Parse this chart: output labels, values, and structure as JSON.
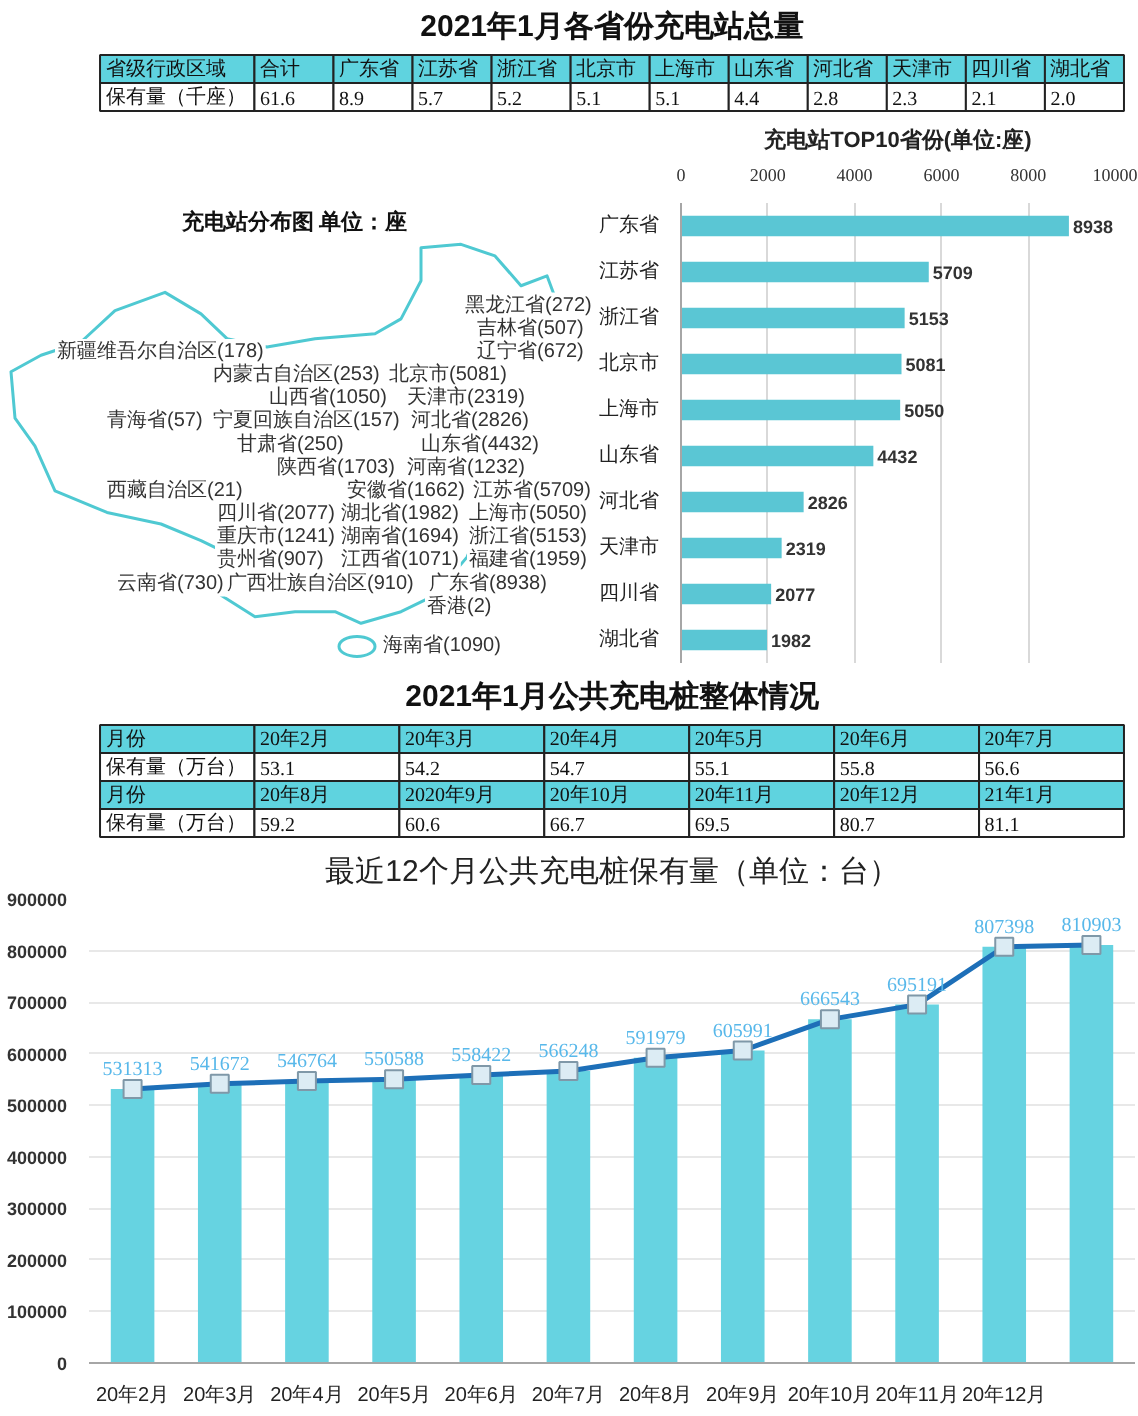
{
  "chart_data": [
    {
      "type": "other",
      "title": "2021年1月各省份充电站总量",
      "xlabel": "省级行政区域",
      "ylabel": "保有量（千座）",
      "categories": [
        "合计",
        "广东省",
        "江苏省",
        "浙江省",
        "北京市",
        "上海市",
        "山东省",
        "河北省",
        "天津市",
        "四川省",
        "湖北省"
      ],
      "values": [
        61.6,
        8.9,
        5.7,
        5.2,
        5.1,
        5.1,
        4.4,
        2.8,
        2.3,
        2.1,
        2.0
      ],
      "value_labels": [
        "61.6",
        "8.9",
        "5.7",
        "5.2",
        "5.1",
        "5.1",
        "4.4",
        "2.8",
        "2.3",
        "2.1",
        "2.0"
      ]
    },
    {
      "type": "other",
      "title": "充电站分布图  单位：座",
      "annotations": [
        "黑龙江省(272)",
        "吉林省(507)",
        "新疆维吾尔自治区(178)",
        "辽宁省(672)",
        "内蒙古自治区(253)",
        "北京市(5081)",
        "山西省(1050)",
        "天津市(2319)",
        "青海省(57)",
        "宁夏回族自治区(157)",
        "河北省(2826)",
        "甘肃省(250)",
        "山东省(4432)",
        "陕西省(1703)",
        "河南省(1232)",
        "西藏自治区(21)",
        "安徽省(1662)",
        "江苏省(5709)",
        "四川省(2077)",
        "湖北省(1982)",
        "上海市(5050)",
        "重庆市(1241)",
        "湖南省(1694)",
        "浙江省(5153)",
        "贵州省(907)",
        "江西省(1071)",
        "福建省(1959)",
        "云南省(730)",
        "广西壮族自治区(910)",
        "广东省(8938)",
        "香港(2)",
        "海南省(1090)"
      ]
    },
    {
      "type": "bar",
      "orientation": "horizontal",
      "title": "充电站TOP10省份(单位:座)",
      "categories": [
        "广东省",
        "江苏省",
        "浙江省",
        "北京市",
        "上海市",
        "山东省",
        "河北省",
        "天津市",
        "四川省",
        "湖北省"
      ],
      "values": [
        8938,
        5709,
        5153,
        5081,
        5050,
        4432,
        2826,
        2319,
        2077,
        1982
      ],
      "color": "#5ac6d4",
      "xlim": [
        0,
        10000
      ],
      "xticks": [
        0,
        2000,
        4000,
        6000,
        8000,
        10000
      ],
      "grid": "x",
      "data_labels": true
    },
    {
      "type": "other",
      "title": "2021年1月公共充电桩整体情况",
      "xlabel": "月份",
      "ylabel": "保有量（万台）",
      "categories": [
        "20年2月",
        "20年3月",
        "20年4月",
        "20年5月",
        "20年6月",
        "20年7月",
        "20年8月",
        "2020年9月",
        "20年10月",
        "20年11月",
        "20年12月",
        "21年1月"
      ],
      "values": [
        53.1,
        54.2,
        54.7,
        55.1,
        55.8,
        56.6,
        59.2,
        60.6,
        66.7,
        69.5,
        80.7,
        81.1
      ],
      "data_labels": true
    },
    {
      "type": "bar",
      "title": "最近12个月公共充电桩保有量（单位：台）",
      "categories": [
        "20年2月",
        "20年3月",
        "20年4月",
        "20年5月",
        "20年6月",
        "20年7月",
        "20年8月",
        "20年9月",
        "20年10月",
        "20年11月",
        "20年12月",
        null
      ],
      "series": [
        {
          "type": "bar",
          "color": "#66d3e1",
          "values": [
            531313,
            541672,
            546764,
            550588,
            558422,
            566248,
            591979,
            605991,
            666543,
            695191,
            807398,
            810903
          ]
        },
        {
          "type": "line",
          "color": "#1d6fb8",
          "values": [
            531313,
            541672,
            546764,
            550588,
            558422,
            566248,
            591979,
            605991,
            666543,
            695191,
            807398,
            810903
          ],
          "marker": "square",
          "data_labels": true
        }
      ],
      "ylim": [
        0,
        900000
      ],
      "yticks": [
        0,
        100000,
        200000,
        300000,
        400000,
        500000,
        600000,
        700000,
        800000,
        900000
      ],
      "grid": "y"
    }
  ]
}
